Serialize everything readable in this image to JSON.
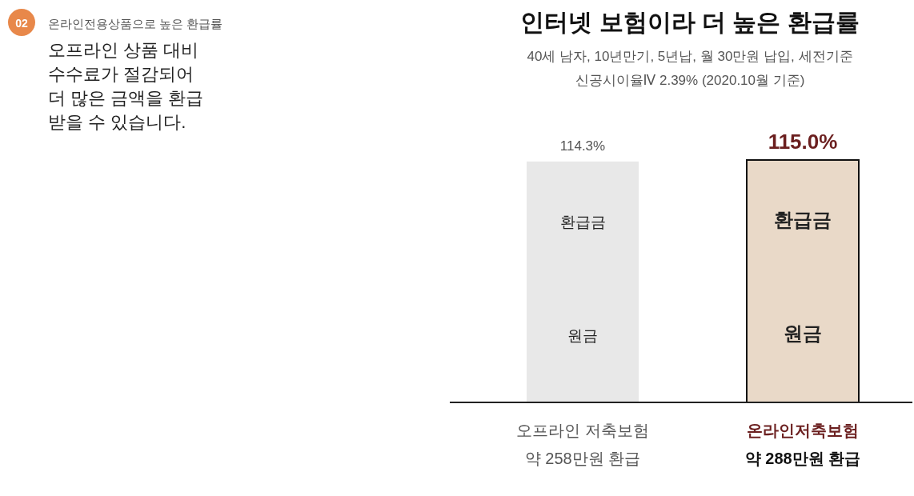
{
  "chart_data": {
    "type": "bar",
    "title": "인터넷 보험이라 더 높은 환급률",
    "subtitle": "40세 남자, 10년만기, 5년납, 월 30만원 납입, 세전기준\n신공시이율Ⅳ 2.39% (2020.10월 기준)",
    "categories": [
      "오프라인 저축보험",
      "온라인저축보험"
    ],
    "series": [
      {
        "values": [
          114.3,
          115.0
        ],
        "colors": [
          "#e8e8e8",
          "#e9d9c8"
        ],
        "value_labels": [
          "114.3%",
          "115.0%"
        ]
      }
    ],
    "annotations": [
      "약 258만원 환급",
      "약 288만원 환급",
      "환급금",
      "원금",
      "02",
      "온라인전용상품으로 높은 환급률",
      "오프라인 상품 대비\n수수료가 절감되어\n더 많은 금액을 환급\n받을 수 있습니다."
    ]
  }
}
